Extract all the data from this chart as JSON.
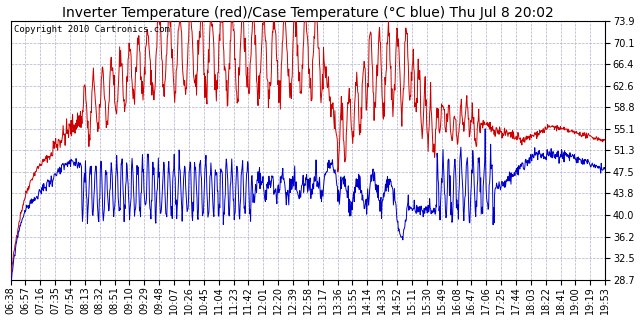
{
  "title": "Inverter Temperature (red)/Case Temperature (°C blue) Thu Jul 8 20:02",
  "copyright": "Copyright 2010 Cartronics.com",
  "yticks": [
    28.7,
    32.5,
    36.2,
    40.0,
    43.8,
    47.5,
    51.3,
    55.1,
    58.8,
    62.6,
    66.4,
    70.1,
    73.9
  ],
  "xtick_labels": [
    "06:38",
    "06:57",
    "07:16",
    "07:35",
    "07:54",
    "08:13",
    "08:32",
    "08:51",
    "09:10",
    "09:29",
    "09:48",
    "10:07",
    "10:26",
    "10:45",
    "11:04",
    "11:23",
    "11:42",
    "12:01",
    "12:20",
    "12:39",
    "12:58",
    "13:17",
    "13:36",
    "13:55",
    "14:14",
    "14:33",
    "14:52",
    "15:11",
    "15:30",
    "15:49",
    "16:08",
    "16:47",
    "17:06",
    "17:25",
    "17:44",
    "18:03",
    "18:22",
    "18:41",
    "19:00",
    "19:19",
    "19:53"
  ],
  "ymin": 28.7,
  "ymax": 73.9,
  "background_color": "#ffffff",
  "plot_bg_color": "#ffffff",
  "grid_color": "#b0b0cc",
  "red_color": "#cc0000",
  "blue_color": "#0000cc",
  "title_fontsize": 10,
  "tick_fontsize": 7,
  "copyright_fontsize": 6.5
}
